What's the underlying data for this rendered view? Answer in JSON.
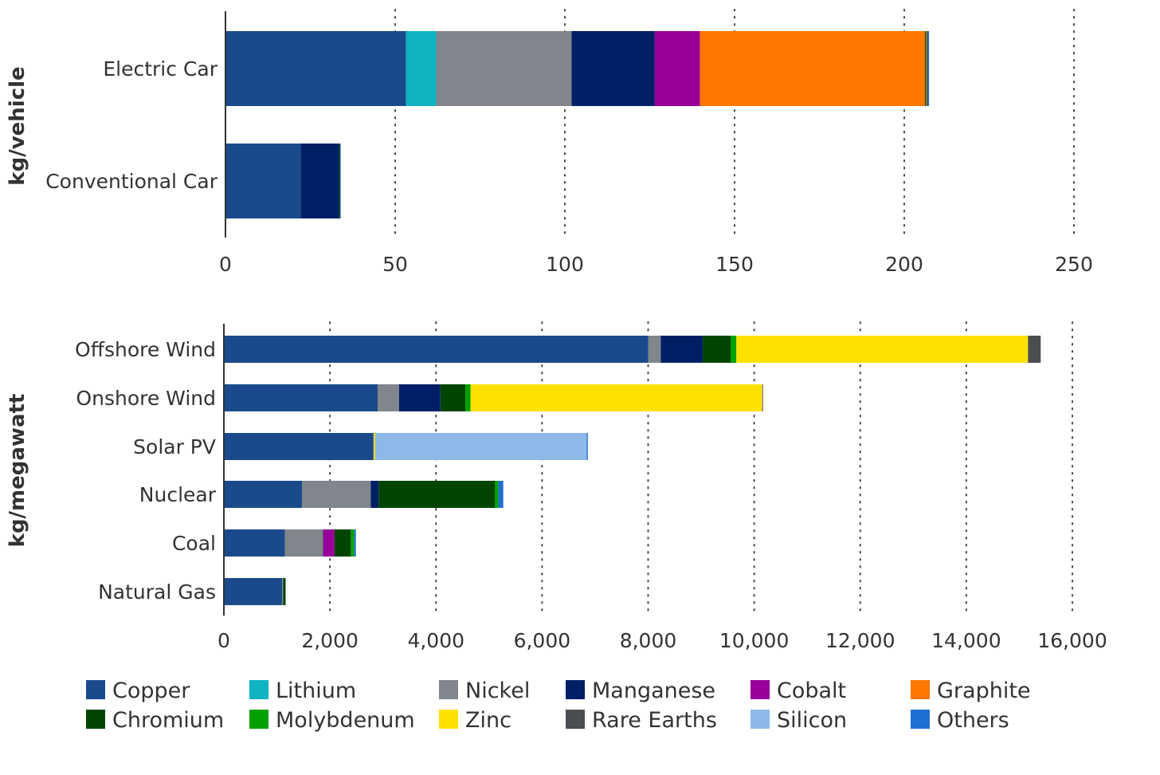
{
  "materials": [
    {
      "name": "Copper",
      "color": "#1a4a8c"
    },
    {
      "name": "Lithium",
      "color": "#0fb3c2"
    },
    {
      "name": "Nickel",
      "color": "#80868c"
    },
    {
      "name": "Manganese",
      "color": "#001f66"
    },
    {
      "name": "Cobalt",
      "color": "#990099"
    },
    {
      "name": "Graphite",
      "color": "#ff7700"
    },
    {
      "name": "Chromium",
      "color": "#004400"
    },
    {
      "name": "Molybdenum",
      "color": "#00a000"
    },
    {
      "name": "Zinc",
      "color": "#ffe100"
    },
    {
      "name": "Rare Earths",
      "color": "#4a4d52"
    },
    {
      "name": "Silicon",
      "color": "#8db8e8"
    },
    {
      "name": "Others",
      "color": "#1f6ed4"
    }
  ],
  "chart_data": [
    {
      "type": "bar",
      "orientation": "horizontal",
      "stacked": true,
      "ylabel": "kg/vehicle",
      "xlim": [
        0,
        250
      ],
      "xticks": [
        0,
        50,
        100,
        150,
        200,
        250
      ],
      "grid": "vertical-dotted",
      "categories": [
        "Electric Car",
        "Conventional Car"
      ],
      "series": [
        {
          "name": "Copper",
          "values": [
            53.2,
            22.3
          ]
        },
        {
          "name": "Lithium",
          "values": [
            8.9,
            0
          ]
        },
        {
          "name": "Nickel",
          "values": [
            39.9,
            0
          ]
        },
        {
          "name": "Manganese",
          "values": [
            24.5,
            11.2
          ]
        },
        {
          "name": "Cobalt",
          "values": [
            13.3,
            0
          ]
        },
        {
          "name": "Graphite",
          "values": [
            66.3,
            0
          ]
        },
        {
          "name": "Chromium",
          "values": [
            0.3,
            0.3
          ]
        },
        {
          "name": "Molybdenum",
          "values": [
            0,
            0
          ]
        },
        {
          "name": "Zinc",
          "values": [
            0.1,
            0
          ]
        },
        {
          "name": "Rare Earths",
          "values": [
            0.5,
            0
          ]
        },
        {
          "name": "Silicon",
          "values": [
            0,
            0
          ]
        },
        {
          "name": "Others",
          "values": [
            0.3,
            0.1
          ]
        }
      ]
    },
    {
      "type": "bar",
      "orientation": "horizontal",
      "stacked": true,
      "ylabel": "kg/megawatt",
      "xlim": [
        0,
        16000
      ],
      "xticks": [
        0,
        2000,
        4000,
        6000,
        8000,
        10000,
        12000,
        14000,
        16000
      ],
      "xtick_labels": [
        "0",
        "2,000",
        "4,000",
        "6,000",
        "8,000",
        "10,000",
        "12,000",
        "14,000",
        "16,000"
      ],
      "grid": "vertical-dotted",
      "categories": [
        "Offshore Wind",
        "Onshore Wind",
        "Solar PV",
        "Nuclear",
        "Coal",
        "Natural Gas"
      ],
      "series": [
        {
          "name": "Copper",
          "values": [
            8000,
            2900,
            2822,
            1473,
            1150,
            1100
          ]
        },
        {
          "name": "Lithium",
          "values": [
            0,
            0,
            0,
            0,
            0,
            0
          ]
        },
        {
          "name": "Nickel",
          "values": [
            240,
            403,
            1,
            1297,
            721,
            16
          ]
        },
        {
          "name": "Manganese",
          "values": [
            790,
            780,
            0,
            148,
            5,
            0
          ]
        },
        {
          "name": "Cobalt",
          "values": [
            0,
            0,
            0,
            0,
            210,
            0
          ]
        },
        {
          "name": "Graphite",
          "values": [
            0,
            0,
            0,
            0,
            0,
            0
          ]
        },
        {
          "name": "Chromium",
          "values": [
            525,
            470,
            0,
            2190,
            308,
            48
          ]
        },
        {
          "name": "Molybdenum",
          "values": [
            109,
            99,
            0,
            70,
            66,
            0
          ]
        },
        {
          "name": "Zinc",
          "values": [
            5500,
            5500,
            30,
            0,
            0,
            0
          ]
        },
        {
          "name": "Rare Earths",
          "values": [
            239,
            14,
            0,
            0,
            0,
            0
          ]
        },
        {
          "name": "Silicon",
          "values": [
            0,
            0,
            3990,
            0,
            0,
            0
          ]
        },
        {
          "name": "Others",
          "values": [
            0,
            0,
            20,
            90,
            30,
            0
          ]
        }
      ]
    }
  ]
}
